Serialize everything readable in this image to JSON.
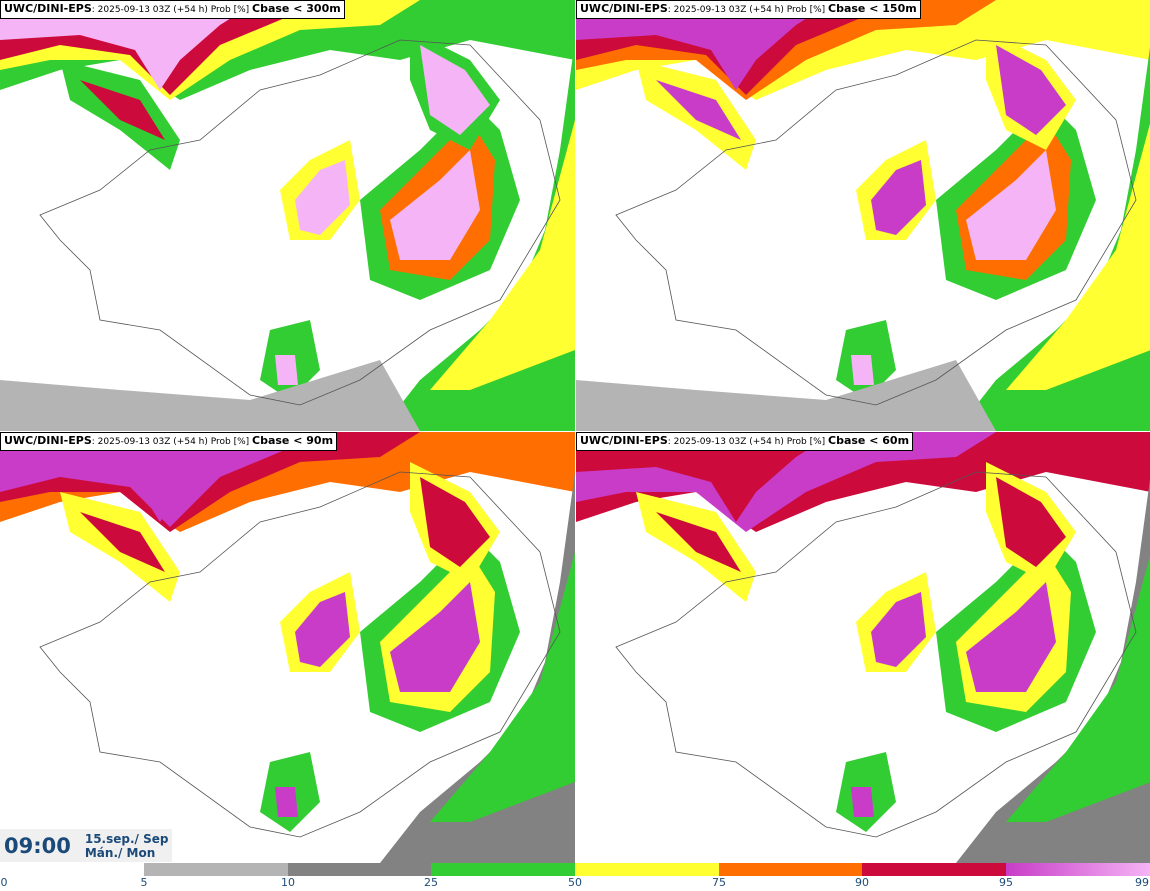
{
  "panels": [
    {
      "model": "UWC/DINI-EPS",
      "run_info": ": 2025-09-13 03Z (+54 h) Prob [%] ",
      "field": "Cbase < 300m"
    },
    {
      "model": "UWC/DINI-EPS",
      "run_info": ": 2025-09-13 03Z (+54 h) Prob [%] ",
      "field": "Cbase < 150m"
    },
    {
      "model": "UWC/DINI-EPS",
      "run_info": ": 2025-09-13 03Z (+54 h) Prob [%] ",
      "field": "Cbase < 90m"
    },
    {
      "model": "UWC/DINI-EPS",
      "run_info": ": 2025-09-13 03Z (+54 h) Prob [%] ",
      "field": "Cbase < 60m"
    }
  ],
  "valid_time": {
    "time": "09:00",
    "date": "15.sep./ Sep",
    "day": "Mán./ Mon"
  },
  "colorbar": {
    "ticks": [
      "0",
      "5",
      "10",
      "25",
      "50",
      "75",
      "90",
      "95",
      "99"
    ],
    "colors": [
      "#ffffff",
      "#b4b4b4",
      "#828282",
      "#32cd32",
      "#ffff32",
      "#ff6e00",
      "#cd0a3c",
      "#c83cc8",
      "#f5b4f5"
    ]
  }
}
